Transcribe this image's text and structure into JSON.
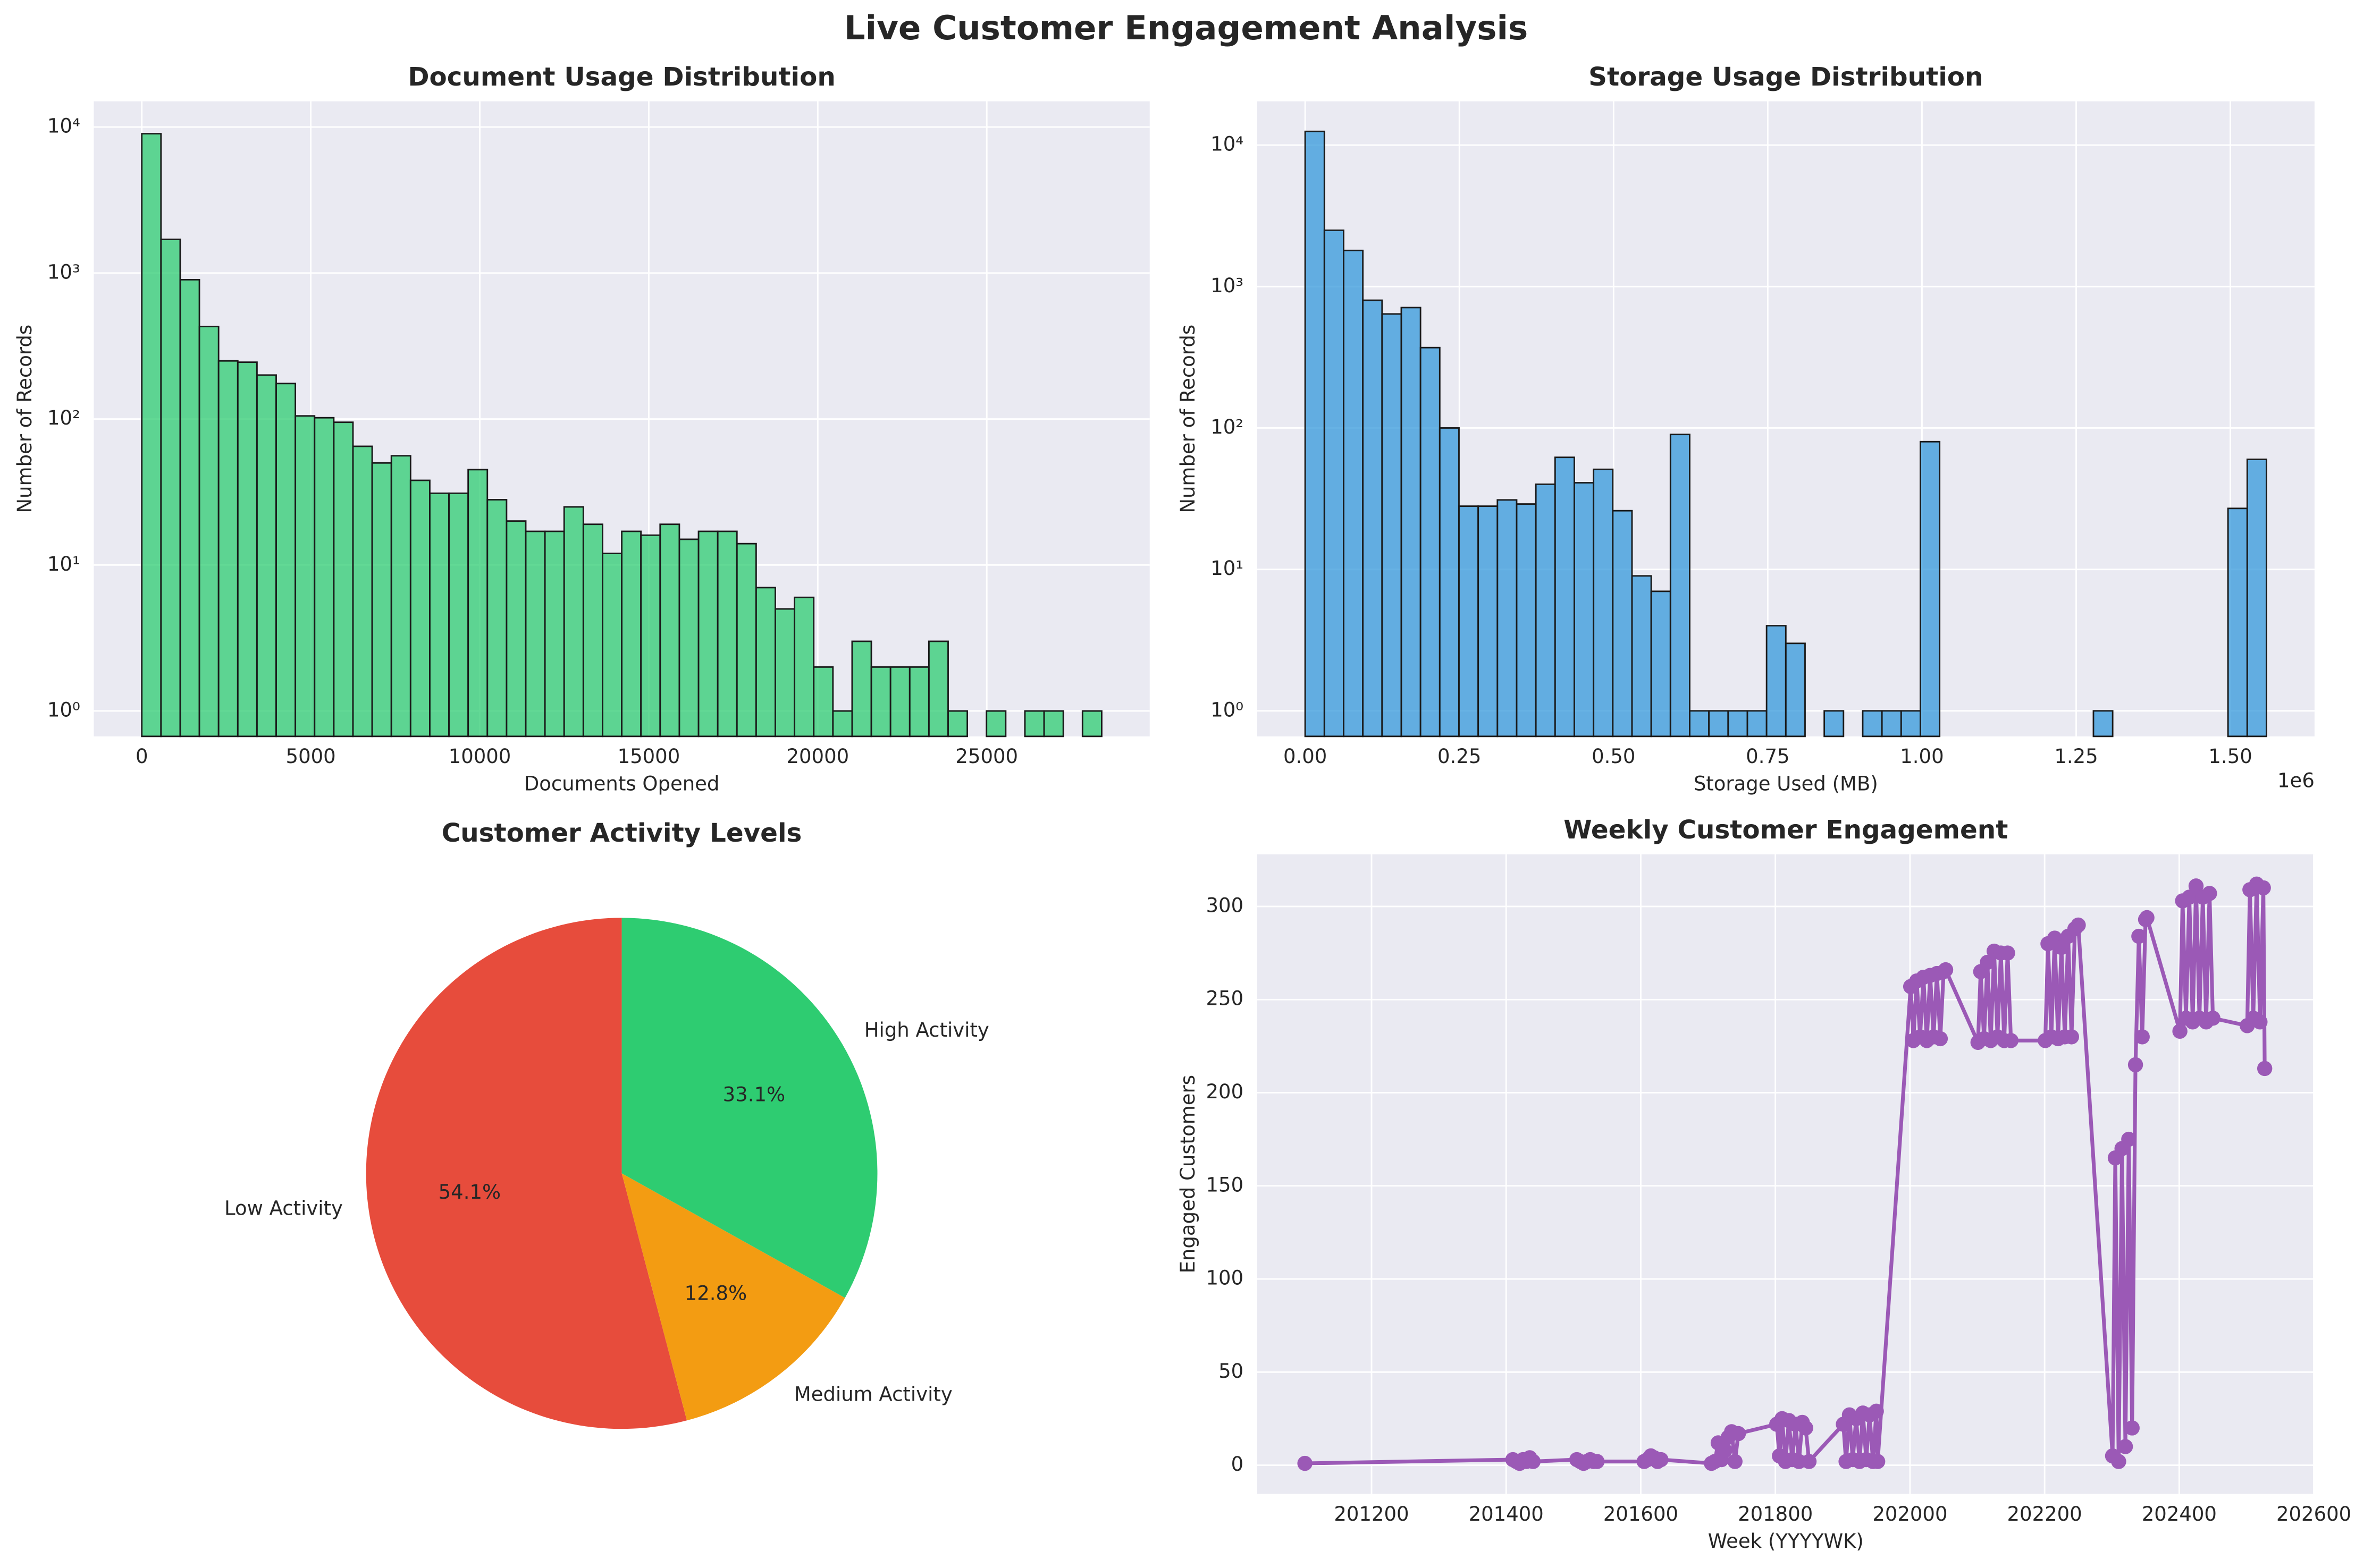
{
  "title": "Live Customer Engagement Analysis",
  "chart_data": [
    {
      "type": "histogram",
      "title": "Document Usage Distribution",
      "x_label": "Documents Opened",
      "y_label": "Number of Records",
      "color": "#2ecc71",
      "alpha": 0.75,
      "edge_color": "#1a1a1a",
      "log_y": true,
      "grid": true,
      "bins": [
        0,
        568,
        1136,
        1704,
        2272,
        2840,
        3408,
        3976,
        4544,
        5112,
        5680,
        6248,
        6816,
        7384,
        7952,
        8520,
        9088,
        9656,
        10224,
        10792,
        11360,
        11928,
        12496,
        13064,
        13632,
        14200,
        14768,
        15336,
        15904,
        16472,
        17040,
        17608,
        18176,
        18744,
        19312,
        19880,
        20448,
        21016,
        21584,
        22152,
        22720,
        23288,
        23856,
        24424,
        24992,
        25560,
        26128,
        26696,
        27264,
        27832,
        28400
      ],
      "values": [
        9000,
        1700,
        900,
        430,
        250,
        245,
        200,
        175,
        105,
        102,
        95,
        65,
        50,
        56,
        38,
        31,
        31,
        45,
        28,
        20,
        17,
        17,
        25,
        19,
        12,
        17,
        16,
        19,
        15,
        17,
        17,
        14,
        7,
        5,
        6,
        2,
        1,
        3,
        2,
        2,
        2,
        3,
        1,
        0,
        1,
        0,
        1,
        1,
        0,
        1
      ],
      "xlim": [
        -1420,
        29820
      ],
      "xticks": [
        0,
        5000,
        10000,
        15000,
        20000,
        25000
      ],
      "ylim": [
        0.67,
        15000
      ],
      "yticks": [
        {
          "value": 1,
          "label": "10⁰"
        },
        {
          "value": 10,
          "label": "10¹"
        },
        {
          "value": 100,
          "label": "10²"
        },
        {
          "value": 1000,
          "label": "10³"
        },
        {
          "value": 10000,
          "label": "10⁴"
        }
      ]
    },
    {
      "type": "histogram",
      "title": "Storage Usage Distribution",
      "x_label": "Storage Used (MB)",
      "y_label": "Number of Records",
      "x_offset_text": "1e6",
      "color": "#3498db",
      "alpha": 0.75,
      "edge_color": "#1a1a1a",
      "log_y": true,
      "grid": true,
      "bins": [
        0,
        31170,
        62340,
        93510,
        124680,
        155850,
        187020,
        218190,
        249360,
        280530,
        311700,
        342870,
        374040,
        405210,
        436380,
        467550,
        498720,
        529890,
        561060,
        592230,
        623400,
        654570,
        685740,
        716910,
        748080,
        779250,
        810420,
        841590,
        872760,
        903930,
        935100,
        966270,
        997440,
        1028610,
        1059780,
        1090950,
        1122120,
        1153290,
        1184460,
        1215630,
        1246800,
        1277970,
        1309140,
        1340310,
        1371480,
        1402650,
        1433820,
        1464990,
        1496160,
        1527330,
        1558500
      ],
      "values": [
        12500,
        2500,
        1800,
        800,
        640,
        710,
        370,
        100,
        28,
        28,
        31,
        29,
        40,
        62,
        41,
        51,
        26,
        9,
        7,
        90,
        1,
        1,
        1,
        1,
        4,
        3,
        0,
        1,
        0,
        1,
        1,
        1,
        80,
        0,
        0,
        0,
        0,
        0,
        0,
        0,
        0,
        1,
        0,
        0,
        0,
        0,
        0,
        0,
        27,
        60
      ],
      "xlim": [
        -77900,
        1636400
      ],
      "xticks": [
        {
          "value": 0,
          "label": "0.00"
        },
        {
          "value": 250000,
          "label": "0.25"
        },
        {
          "value": 500000,
          "label": "0.50"
        },
        {
          "value": 750000,
          "label": "0.75"
        },
        {
          "value": 1000000,
          "label": "1.00"
        },
        {
          "value": 1250000,
          "label": "1.25"
        },
        {
          "value": 1500000,
          "label": "1.50"
        }
      ],
      "ylim": [
        0.66,
        20400
      ],
      "yticks": [
        {
          "value": 1,
          "label": "10⁰"
        },
        {
          "value": 10,
          "label": "10¹"
        },
        {
          "value": 100,
          "label": "10²"
        },
        {
          "value": 1000,
          "label": "10³"
        },
        {
          "value": 10000,
          "label": "10⁴"
        }
      ]
    },
    {
      "type": "pie",
      "title": "Customer Activity Levels",
      "start_angle": 90,
      "categories": [
        "Low Activity",
        "Medium Activity",
        "High Activity"
      ],
      "values": [
        54.1,
        12.8,
        33.1
      ],
      "value_labels": [
        "54.1%",
        "12.8%",
        "33.1%"
      ],
      "colors": [
        "#e74c3c",
        "#f39c12",
        "#2ecc71"
      ]
    },
    {
      "type": "line",
      "title": "Weekly Customer Engagement",
      "x_label": "Week (YYYYWK)",
      "y_label": "Engaged Customers",
      "color": "#9b59b6",
      "grid": true,
      "x": [
        201101,
        201410,
        201415,
        201420,
        201425,
        201430,
        201435,
        201440,
        201505,
        201510,
        201515,
        201520,
        201525,
        201530,
        201535,
        201605,
        201610,
        201615,
        201620,
        201625,
        201630,
        201705,
        201710,
        201715,
        201720,
        201725,
        201730,
        201735,
        201740,
        201745,
        201802,
        201806,
        201810,
        201815,
        201820,
        201825,
        201830,
        201835,
        201840,
        201845,
        201850,
        201901,
        201905,
        201910,
        201915,
        201920,
        201925,
        201930,
        201935,
        201940,
        201945,
        201950,
        201952,
        202001,
        202005,
        202010,
        202015,
        202020,
        202025,
        202030,
        202035,
        202040,
        202045,
        202050,
        202053,
        202101,
        202105,
        202110,
        202115,
        202120,
        202125,
        202130,
        202135,
        202140,
        202145,
        202150,
        202201,
        202205,
        202210,
        202215,
        202220,
        202225,
        202230,
        202235,
        202240,
        202245,
        202250,
        202301,
        202305,
        202310,
        202315,
        202320,
        202325,
        202330,
        202335,
        202340,
        202345,
        202350,
        202352,
        202401,
        202405,
        202410,
        202415,
        202420,
        202425,
        202430,
        202435,
        202440,
        202445,
        202450,
        202501,
        202505,
        202510,
        202515,
        202520,
        202525,
        202527
      ],
      "values": [
        1,
        3,
        2,
        1,
        3,
        2,
        4,
        2,
        3,
        2,
        1,
        2,
        3,
        2,
        2,
        2,
        3,
        5,
        4,
        2,
        3,
        1,
        2,
        12,
        3,
        8,
        15,
        18,
        2,
        17,
        22,
        5,
        25,
        2,
        24,
        3,
        22,
        2,
        23,
        20,
        2,
        22,
        2,
        27,
        3,
        25,
        2,
        28,
        3,
        27,
        2,
        29,
        2,
        257,
        228,
        260,
        230,
        262,
        228,
        263,
        230,
        264,
        229,
        265,
        266,
        227,
        265,
        229,
        270,
        228,
        276,
        230,
        275,
        228,
        275,
        228,
        228,
        280,
        230,
        283,
        229,
        278,
        230,
        284,
        230,
        288,
        290,
        5,
        165,
        2,
        170,
        10,
        175,
        20,
        215,
        284,
        230,
        293,
        294,
        233,
        303,
        240,
        305,
        238,
        311,
        240,
        305,
        238,
        307,
        240,
        236,
        309,
        240,
        312,
        238,
        310,
        213
      ],
      "xlim": [
        201030,
        202601
      ],
      "xticks": [
        201200,
        201400,
        201600,
        201800,
        202000,
        202200,
        202400,
        202600
      ],
      "ylim": [
        -15.4,
        328
      ],
      "yticks": [
        0,
        50,
        100,
        150,
        200,
        250,
        300
      ]
    }
  ]
}
